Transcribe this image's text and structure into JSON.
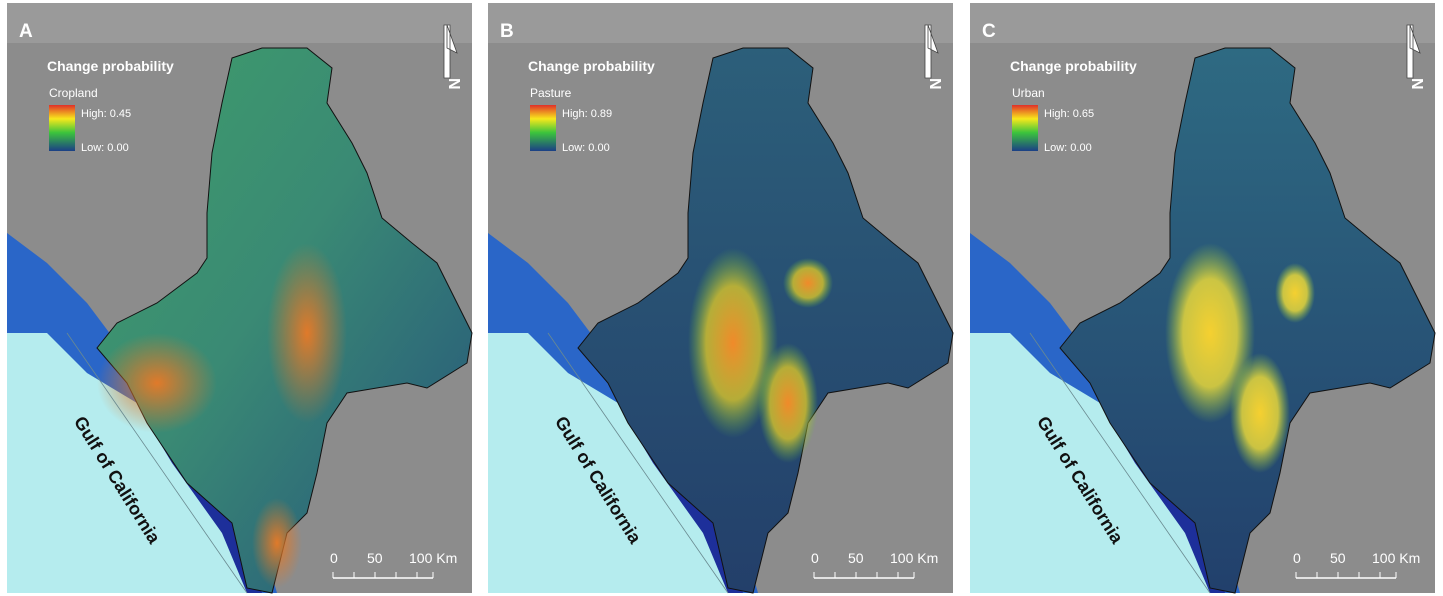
{
  "panels": [
    {
      "label": "A",
      "legend_title": "Change probability",
      "layer": "Cropland",
      "high": "High: 0.45",
      "low": "Low: 0.00",
      "north": "N",
      "scale_labels": [
        "0",
        "50",
        "100 Km"
      ],
      "sea_label": "Gulf of California"
    },
    {
      "label": "B",
      "legend_title": "Change probability",
      "layer": "Pasture",
      "high": "High: 0.89",
      "low": "Low: 0.00",
      "north": "N",
      "scale_labels": [
        "0",
        "50",
        "100 Km"
      ],
      "sea_label": "Gulf of California"
    },
    {
      "label": "C",
      "legend_title": "Change probability",
      "layer": "Urban",
      "high": "High: 0.65",
      "low": "Low: 0.00",
      "north": "N",
      "scale_labels": [
        "0",
        "50",
        "100 Km"
      ],
      "sea_label": "Gulf of California"
    }
  ]
}
